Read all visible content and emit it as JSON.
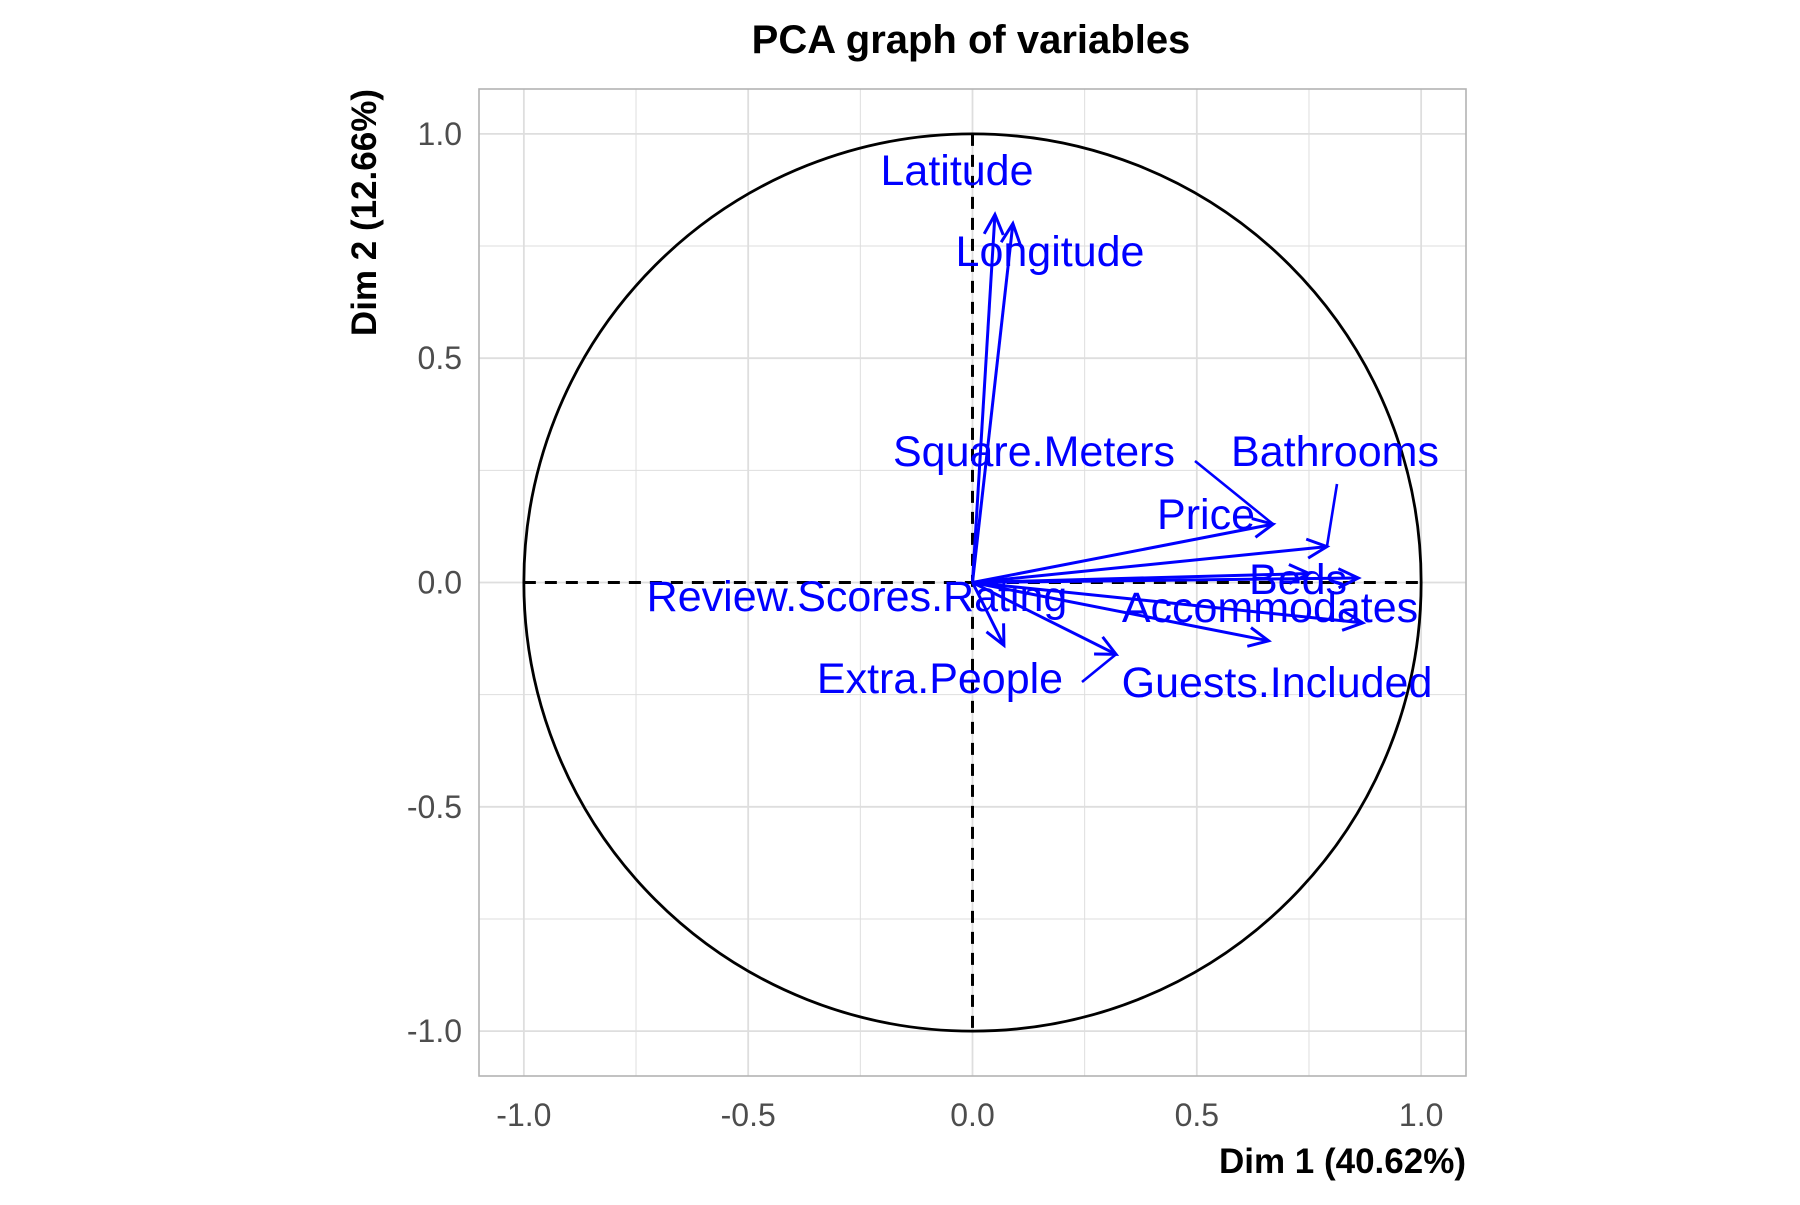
{
  "chart_data": {
    "type": "scatter",
    "subtype": "pca-correlation-circle",
    "title": "PCA graph of variables",
    "xlabel": "Dim 1 (40.62%)",
    "ylabel": "Dim 2 (12.66%)",
    "xlim": [
      -1.1,
      1.1
    ],
    "ylim": [
      -1.1,
      1.1
    ],
    "x_ticks": [
      {
        "value": -1.0,
        "label": "-1.0"
      },
      {
        "value": -0.5,
        "label": "-0.5"
      },
      {
        "value": 0.0,
        "label": "0.0"
      },
      {
        "value": 0.5,
        "label": "0.5"
      },
      {
        "value": 1.0,
        "label": "1.0"
      }
    ],
    "y_ticks": [
      {
        "value": 1.0,
        "label": "1.0"
      },
      {
        "value": 0.5,
        "label": "0.5"
      },
      {
        "value": 0.0,
        "label": "0.0"
      },
      {
        "value": -0.5,
        "label": "-0.5"
      },
      {
        "value": -1.0,
        "label": "-1.0"
      }
    ],
    "grid": true,
    "unit_circle": true,
    "zero_lines": "dashed",
    "arrow_color": "#0000ff",
    "variables": [
      {
        "name": "Latitude",
        "x": 0.05,
        "y": 0.82
      },
      {
        "name": "Longitude",
        "x": 0.09,
        "y": 0.8
      },
      {
        "name": "Square.Meters",
        "x": 0.67,
        "y": 0.13
      },
      {
        "name": "Bathrooms",
        "x": 0.79,
        "y": 0.08
      },
      {
        "name": "Price",
        "x": 0.75,
        "y": 0.02
      },
      {
        "name": "Beds",
        "x": 0.86,
        "y": 0.01
      },
      {
        "name": "Accommodates",
        "x": 0.87,
        "y": -0.09
      },
      {
        "name": "Guests.Included",
        "x": 0.66,
        "y": -0.13
      },
      {
        "name": "Review.Scores.Rating",
        "x": 0.07,
        "y": -0.14
      },
      {
        "name": "Extra.People",
        "x": 0.32,
        "y": -0.16
      }
    ]
  },
  "colors": {
    "arrows": "#0000ff",
    "labels": "#0000ff",
    "grid": "#dedede",
    "panel_border": "#b3b3b3",
    "circle": "#000000"
  }
}
